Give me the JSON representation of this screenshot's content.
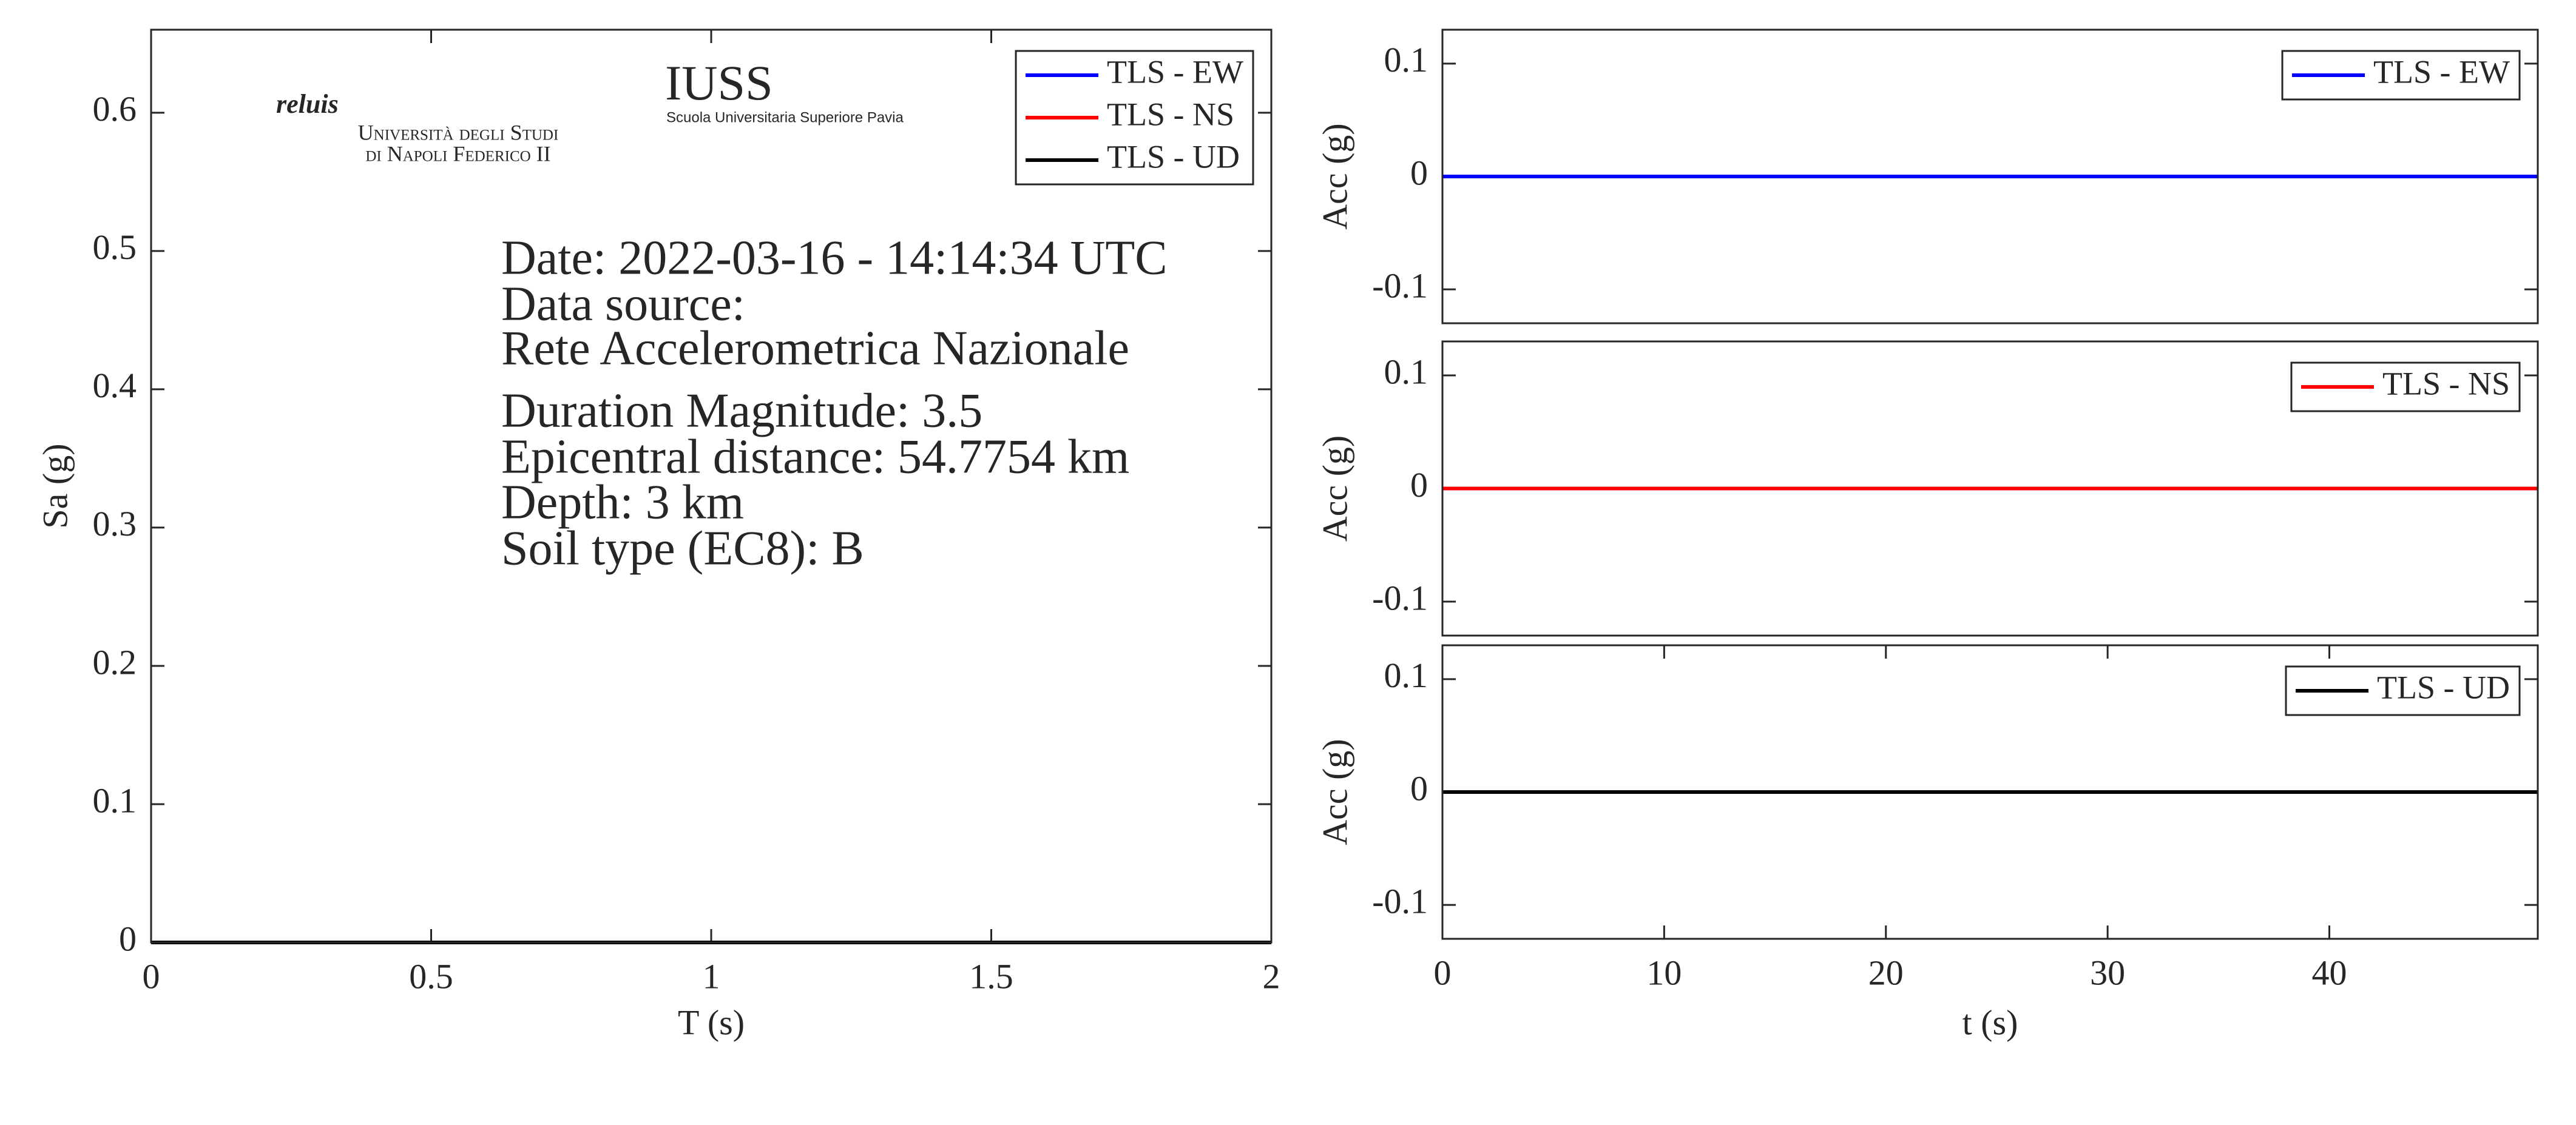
{
  "chart_data": [
    {
      "type": "line",
      "xlabel": "T (s)",
      "ylabel": "Sa (g)",
      "xlim": [
        0,
        2
      ],
      "ylim": [
        0,
        0.66
      ],
      "xticks": [
        0,
        0.5,
        1,
        1.5,
        2
      ],
      "yticks": [
        0,
        0.1,
        0.2,
        0.3,
        0.4,
        0.5,
        0.6
      ],
      "x": [
        0,
        0.5,
        1,
        1.5,
        2
      ],
      "series": [
        {
          "name": "TLS - EW",
          "color": "#0000ff",
          "values": [
            0,
            0,
            0,
            0,
            0
          ]
        },
        {
          "name": "TLS - NS",
          "color": "#ff0000",
          "values": [
            0,
            0,
            0,
            0,
            0
          ]
        },
        {
          "name": "TLS - UD",
          "color": "#000000",
          "values": [
            0,
            0,
            0,
            0,
            0
          ]
        }
      ],
      "legend": "northeast",
      "annotations": [
        "Date: 2022-03-16 - 14:14:34 UTC",
        "Data source:",
        "Rete Accelerometrica Nazionale",
        "Duration Magnitude: 3.5",
        "Epicentral distance: 54.7754 km",
        "Depth: 3 km",
        "Soil type (EC8): B"
      ],
      "logos": [
        "reluis",
        "Università degli Studi",
        "di Napoli Federico II",
        "IUSS",
        "Scuola Universitaria Superiore Pavia"
      ]
    },
    {
      "type": "line",
      "ylabel": "Acc (g)",
      "xlim": [
        0,
        49.4
      ],
      "ylim": [
        -0.13,
        0.13
      ],
      "yticks": [
        -0.1,
        0,
        0.1
      ],
      "x": [
        0,
        49.4
      ],
      "series": [
        {
          "name": "TLS - EW",
          "color": "#0000ff",
          "values": [
            0,
            0
          ]
        }
      ],
      "legend": "northeast"
    },
    {
      "type": "line",
      "ylabel": "Acc (g)",
      "xlim": [
        0,
        49.4
      ],
      "ylim": [
        -0.13,
        0.13
      ],
      "yticks": [
        -0.1,
        0,
        0.1
      ],
      "x": [
        0,
        49.4
      ],
      "series": [
        {
          "name": "TLS - NS",
          "color": "#ff0000",
          "values": [
            0,
            0
          ]
        }
      ],
      "legend": "northeast"
    },
    {
      "type": "line",
      "xlabel": "t (s)",
      "ylabel": "Acc (g)",
      "xlim": [
        0,
        49.4
      ],
      "ylim": [
        -0.13,
        0.13
      ],
      "xticks": [
        0,
        10,
        20,
        30,
        40
      ],
      "yticks": [
        -0.1,
        0,
        0.1
      ],
      "x": [
        0,
        49.4
      ],
      "series": [
        {
          "name": "TLS - UD",
          "color": "#000000",
          "values": [
            0,
            0
          ]
        }
      ],
      "legend": "northeast"
    }
  ]
}
